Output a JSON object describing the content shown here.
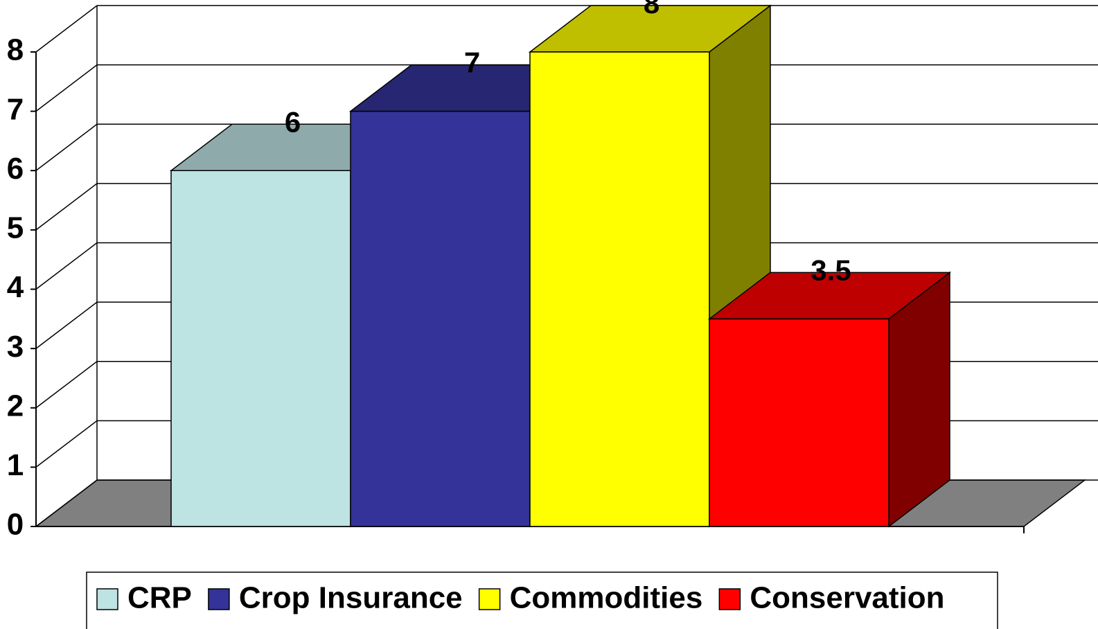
{
  "chart_data": {
    "type": "bar3d",
    "series": [
      {
        "name": "CRP",
        "color": "#bde3e3",
        "values": [
          6
        ]
      },
      {
        "name": "Crop Insurance",
        "color": "#333399",
        "values": [
          7
        ]
      },
      {
        "name": "Commodities",
        "color": "#ffff00",
        "values": [
          8
        ]
      },
      {
        "name": "Conservation",
        "color": "#ff0000",
        "values": [
          3.5
        ]
      }
    ],
    "ylim": [
      0,
      8
    ],
    "yticks": [
      0,
      1,
      2,
      3,
      4,
      5,
      6,
      7,
      8
    ],
    "grid": true,
    "legend": "bottom"
  }
}
